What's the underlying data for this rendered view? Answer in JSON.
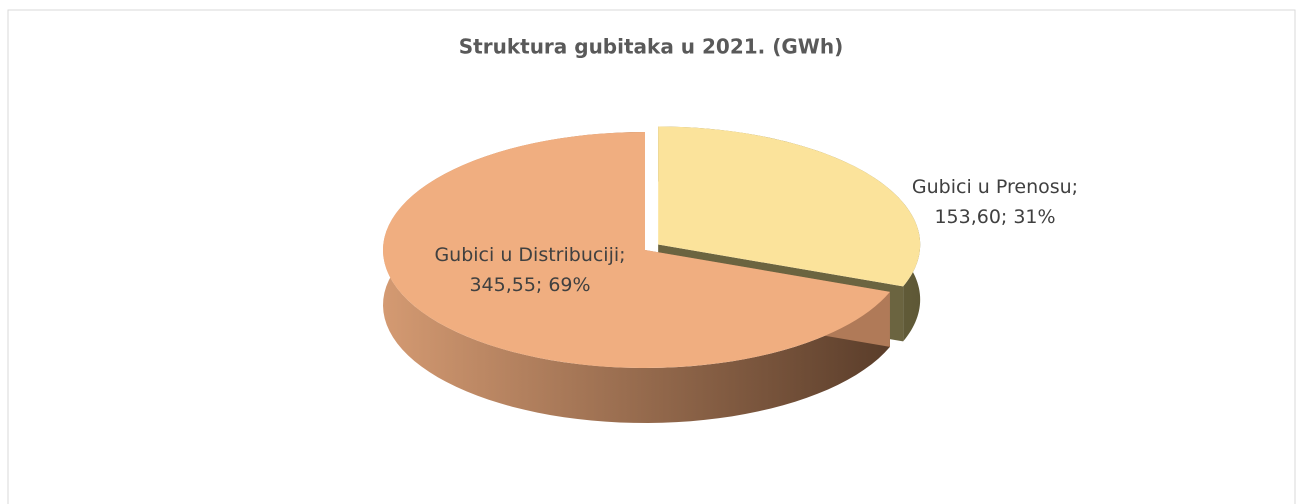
{
  "chart_data": {
    "type": "pie3d",
    "title": "Struktura gubitaka u 2021. (GWh)",
    "categories": [
      "Gubici u Prenosu",
      "Gubici u Distribuciji"
    ],
    "values": [
      153.6,
      345.55
    ],
    "value_labels": [
      "153,60",
      "345,55"
    ],
    "percents": [
      31,
      69
    ],
    "percent_labels": [
      "31%",
      "69%"
    ],
    "separator": ";",
    "colors": [
      "#fbe39b",
      "#f0ae80"
    ]
  }
}
